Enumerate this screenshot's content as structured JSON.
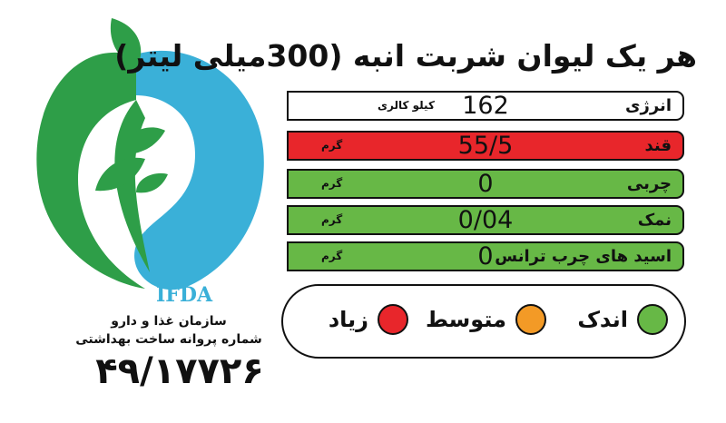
{
  "title": "هر یک لیوان شربت انبه (300میلی لیتر)",
  "rows": {
    "energy": {
      "name": "انرژی",
      "value": "162",
      "unit": "کیلو کالری"
    },
    "sugar": {
      "name": "قند",
      "value": "55/5",
      "unit": "گرم",
      "color": "#e8262b"
    },
    "fat": {
      "name": "چربی",
      "value": "0",
      "unit": "گرم",
      "color": "#67b846"
    },
    "salt": {
      "name": "نمک",
      "value": "0/04",
      "unit": "گرم",
      "color": "#67b846"
    },
    "trans": {
      "name": "اسید های چرب ترانس",
      "value": "0",
      "unit": "گرم",
      "color": "#67b846"
    }
  },
  "legend": {
    "low": {
      "label": "اندک",
      "color": "#67b846"
    },
    "medium": {
      "label": "متوسط",
      "color": "#f39a26"
    },
    "high": {
      "label": "زیاد",
      "color": "#e8262b"
    }
  },
  "logo": {
    "abbr": "IFDA",
    "org_line1": "سازمان غذا و دارو",
    "org_line2": "شماره پروانه ساخت بهداشتی",
    "permit": "۴۹/۱۷۷۲۶",
    "green": "#2e9e48",
    "blue": "#3ab0d8"
  }
}
